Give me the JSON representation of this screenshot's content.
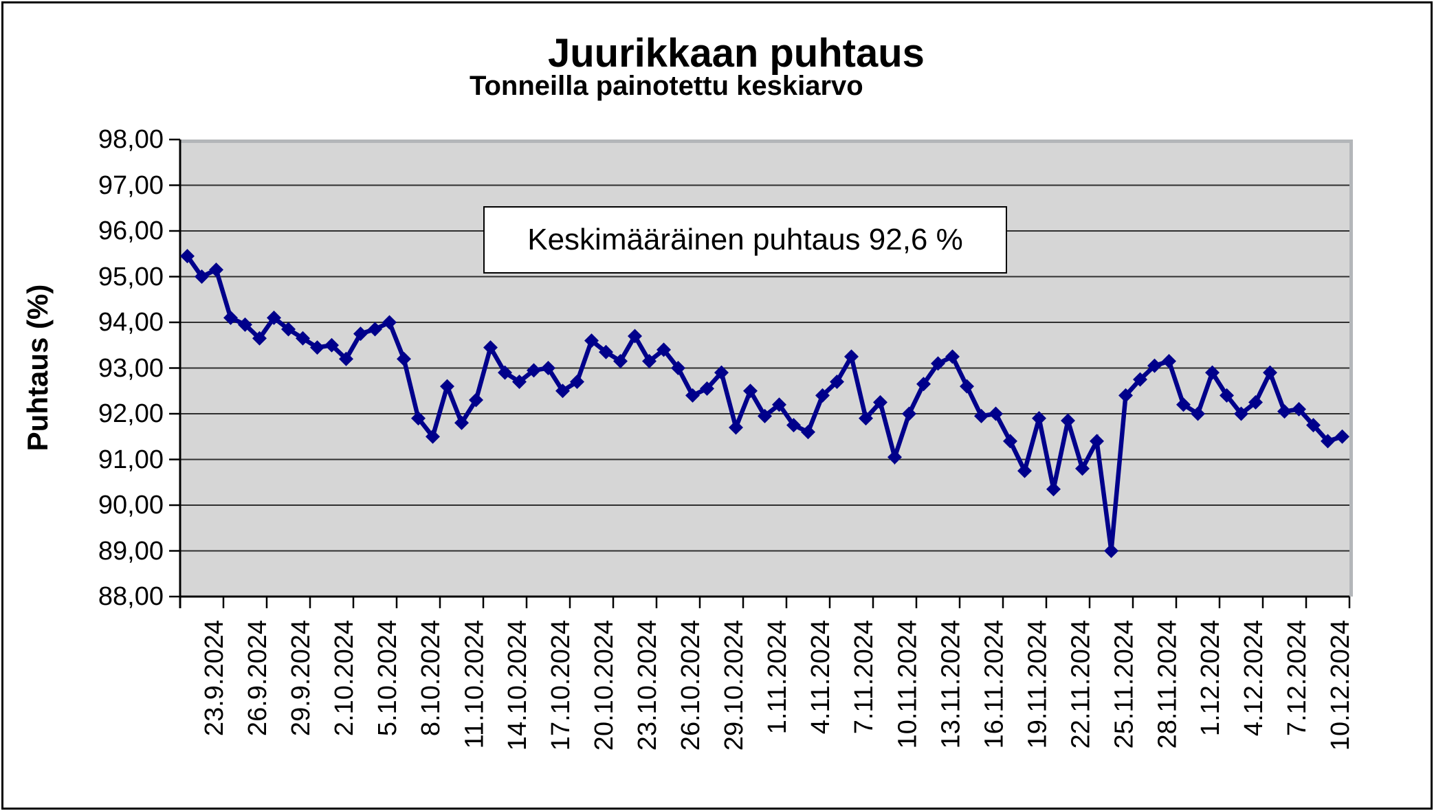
{
  "chart_data": {
    "type": "line",
    "title": "Juurikkaan puhtaus",
    "subtitle": "Tonneilla painotettu keskiarvo",
    "ylabel": "Puhtaus (%)",
    "annotation": "Keskimääräinen puhtaus 92,6 %",
    "ylim": [
      88,
      98
    ],
    "y_tick_step": 1,
    "y_tick_labels": [
      "98,00",
      "97,00",
      "96,00",
      "95,00",
      "94,00",
      "93,00",
      "92,00",
      "91,00",
      "90,00",
      "89,00",
      "88,00"
    ],
    "x_tick_every": 3,
    "x_tick_labels": [
      "23.9.2024",
      "26.9.2024",
      "29.9.2024",
      "2.10.2024",
      "5.10.2024",
      "8.10.2024",
      "11.10.2024",
      "14.10.2024",
      "17.10.2024",
      "20.10.2024",
      "23.10.2024",
      "26.10.2024",
      "29.10.2024",
      "1.11.2024",
      "4.11.2024",
      "7.11.2024",
      "10.11.2024",
      "13.11.2024",
      "16.11.2024",
      "19.11.2024",
      "22.11.2024",
      "25.11.2024",
      "28.11.2024",
      "1.12.2024",
      "4.12.2024",
      "7.12.2024",
      "10.12.2024"
    ],
    "x": [
      "23.9.2024",
      "24.9.2024",
      "25.9.2024",
      "26.9.2024",
      "27.9.2024",
      "28.9.2024",
      "29.9.2024",
      "30.9.2024",
      "1.10.2024",
      "2.10.2024",
      "3.10.2024",
      "4.10.2024",
      "5.10.2024",
      "6.10.2024",
      "7.10.2024",
      "8.10.2024",
      "9.10.2024",
      "10.10.2024",
      "11.10.2024",
      "12.10.2024",
      "13.10.2024",
      "14.10.2024",
      "15.10.2024",
      "16.10.2024",
      "17.10.2024",
      "18.10.2024",
      "19.10.2024",
      "20.10.2024",
      "21.10.2024",
      "22.10.2024",
      "23.10.2024",
      "24.10.2024",
      "25.10.2024",
      "26.10.2024",
      "27.10.2024",
      "28.10.2024",
      "29.10.2024",
      "30.10.2024",
      "31.10.2024",
      "1.11.2024",
      "2.11.2024",
      "3.11.2024",
      "4.11.2024",
      "5.11.2024",
      "6.11.2024",
      "7.11.2024",
      "8.11.2024",
      "9.11.2024",
      "10.11.2024",
      "11.11.2024",
      "12.11.2024",
      "13.11.2024",
      "14.11.2024",
      "15.11.2024",
      "16.11.2024",
      "17.11.2024",
      "18.11.2024",
      "19.11.2024",
      "20.11.2024",
      "21.11.2024",
      "22.11.2024",
      "23.11.2024",
      "24.11.2024",
      "25.11.2024",
      "26.11.2024",
      "27.11.2024",
      "28.11.2024",
      "29.11.2024",
      "30.11.2024",
      "1.12.2024",
      "2.12.2024",
      "3.12.2024",
      "4.12.2024",
      "5.12.2024",
      "6.12.2024",
      "7.12.2024",
      "8.12.2024",
      "9.12.2024",
      "10.12.2024",
      "11.12.2024",
      "12.12.2024"
    ],
    "series": [
      {
        "name": "Juurikkaan puhtaus",
        "marker": "diamond",
        "color": "#00008B",
        "values": [
          95.45,
          95.0,
          95.15,
          94.1,
          93.95,
          93.65,
          94.1,
          93.85,
          93.65,
          93.45,
          93.5,
          93.2,
          93.75,
          93.85,
          94.0,
          93.2,
          91.9,
          91.5,
          92.6,
          91.8,
          92.3,
          93.45,
          92.9,
          92.7,
          92.95,
          93.0,
          92.5,
          92.7,
          93.6,
          93.35,
          93.15,
          93.7,
          93.15,
          93.4,
          93.0,
          92.4,
          92.55,
          92.9,
          91.7,
          92.5,
          91.95,
          92.2,
          91.75,
          91.6,
          92.4,
          92.7,
          93.25,
          91.9,
          92.25,
          91.05,
          92.0,
          92.65,
          93.1,
          93.25,
          92.6,
          91.95,
          92.0,
          91.4,
          90.75,
          91.9,
          90.35,
          91.85,
          90.8,
          91.4,
          89.0,
          92.4,
          92.75,
          93.05,
          93.15,
          92.2,
          92.0,
          92.9,
          92.4,
          92.0,
          92.25,
          92.9,
          92.05,
          92.1,
          91.75,
          91.4,
          91.5
        ]
      }
    ],
    "grid": true,
    "legend": false,
    "plot_bg": "#D6D6D6",
    "grid_color": "#2f2f2f",
    "axis_color": "#000000",
    "shadow_border_color": "#b3b6b9"
  }
}
